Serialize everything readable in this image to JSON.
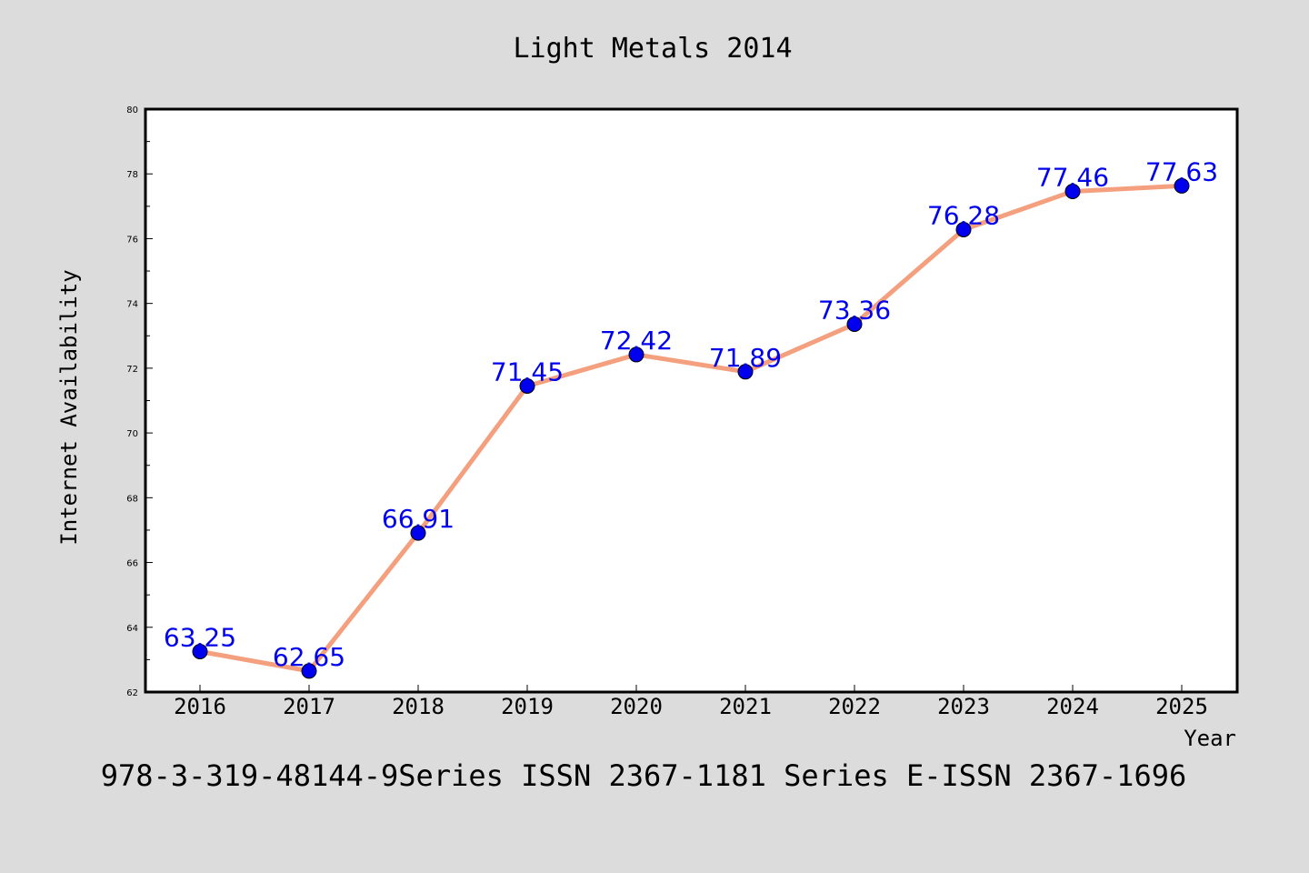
{
  "chart_data": {
    "type": "line",
    "title": "Light Metals 2014",
    "xlabel": "Year",
    "ylabel": "Internet Availability",
    "footer": "978-3-319-48144-9Series ISSN 2367-1181 Series E-ISSN 2367-1696",
    "categories": [
      "2016",
      "2017",
      "2018",
      "2019",
      "2020",
      "2021",
      "2022",
      "2023",
      "2024",
      "2025"
    ],
    "values": [
      63.25,
      62.65,
      66.91,
      71.45,
      72.42,
      71.89,
      73.36,
      76.28,
      77.46,
      77.63
    ],
    "value_labels": [
      "63.25",
      "62.65",
      "66.91",
      "71.45",
      "72.42",
      "71.89",
      "73.36",
      "76.28",
      "77.46",
      "77.63"
    ],
    "ylim": [
      62,
      80
    ],
    "yticks": [
      "62",
      "64",
      "66",
      "68",
      "70",
      "72",
      "74",
      "76",
      "78",
      "80"
    ],
    "grid": false,
    "colors": {
      "line": "#f4a07e",
      "marker": "#0000ee",
      "label": "#0000ee",
      "background": "#dcdcdc",
      "plot_background": "#ffffff"
    }
  }
}
